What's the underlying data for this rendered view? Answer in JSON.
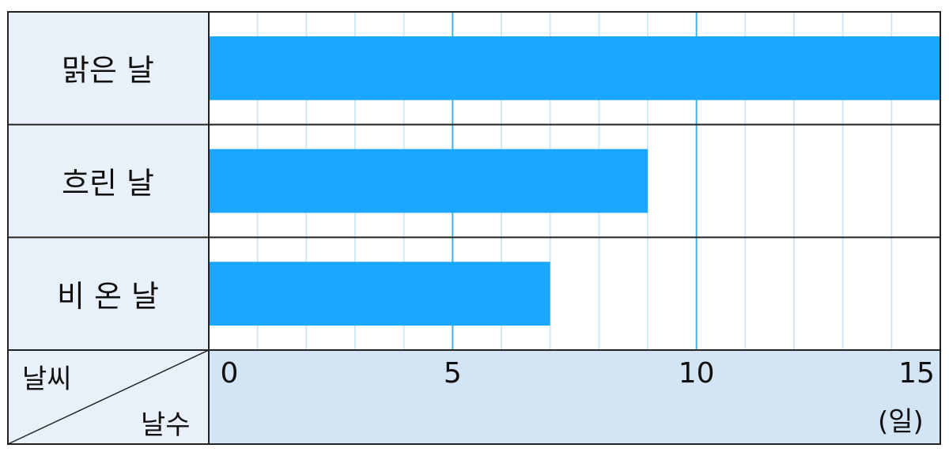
{
  "chart_data": {
    "type": "bar",
    "orientation": "horizontal",
    "categories": [
      "맑은 날",
      "흐린 날",
      "비 온 날"
    ],
    "values": [
      15,
      9,
      7
    ],
    "xlim": [
      0,
      15
    ],
    "major_ticks": [
      0,
      5,
      10,
      15
    ],
    "minor_tick_step": 1,
    "grid": true,
    "corner_header": {
      "top": "날씨",
      "bottom": "날수"
    },
    "unit": "(일)",
    "bar_color": "#1aa7ff",
    "major_grid_color": "#3cb4e6",
    "minor_grid_color": "#cfe8f7",
    "label_background": "#e8f1fa",
    "axis_background": "#d3e5f5"
  }
}
